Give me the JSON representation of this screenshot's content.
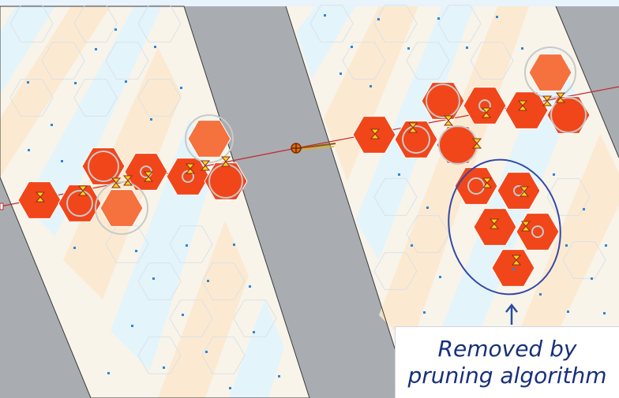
{
  "annotation": {
    "caption_line1": "Removed by",
    "caption_line2": "pruning algorithm",
    "ellipse_color": "#3348a8",
    "arrow_color": "#2a4ea0"
  },
  "colors": {
    "background": "#e9eef4",
    "strip_gray": "#a9adb1",
    "lane_light_blue": "#e4f4fb",
    "lane_light_orange": "#fbe8cc",
    "cell_dot": "#2e86d6",
    "selected_cell": "#f1461a",
    "candidate_cell": "#f5713e",
    "track_line": "#c0282a",
    "marker_yellow": "#ffd21f",
    "marker_outline": "#8a3010",
    "crosshair": "#e06a10"
  }
}
